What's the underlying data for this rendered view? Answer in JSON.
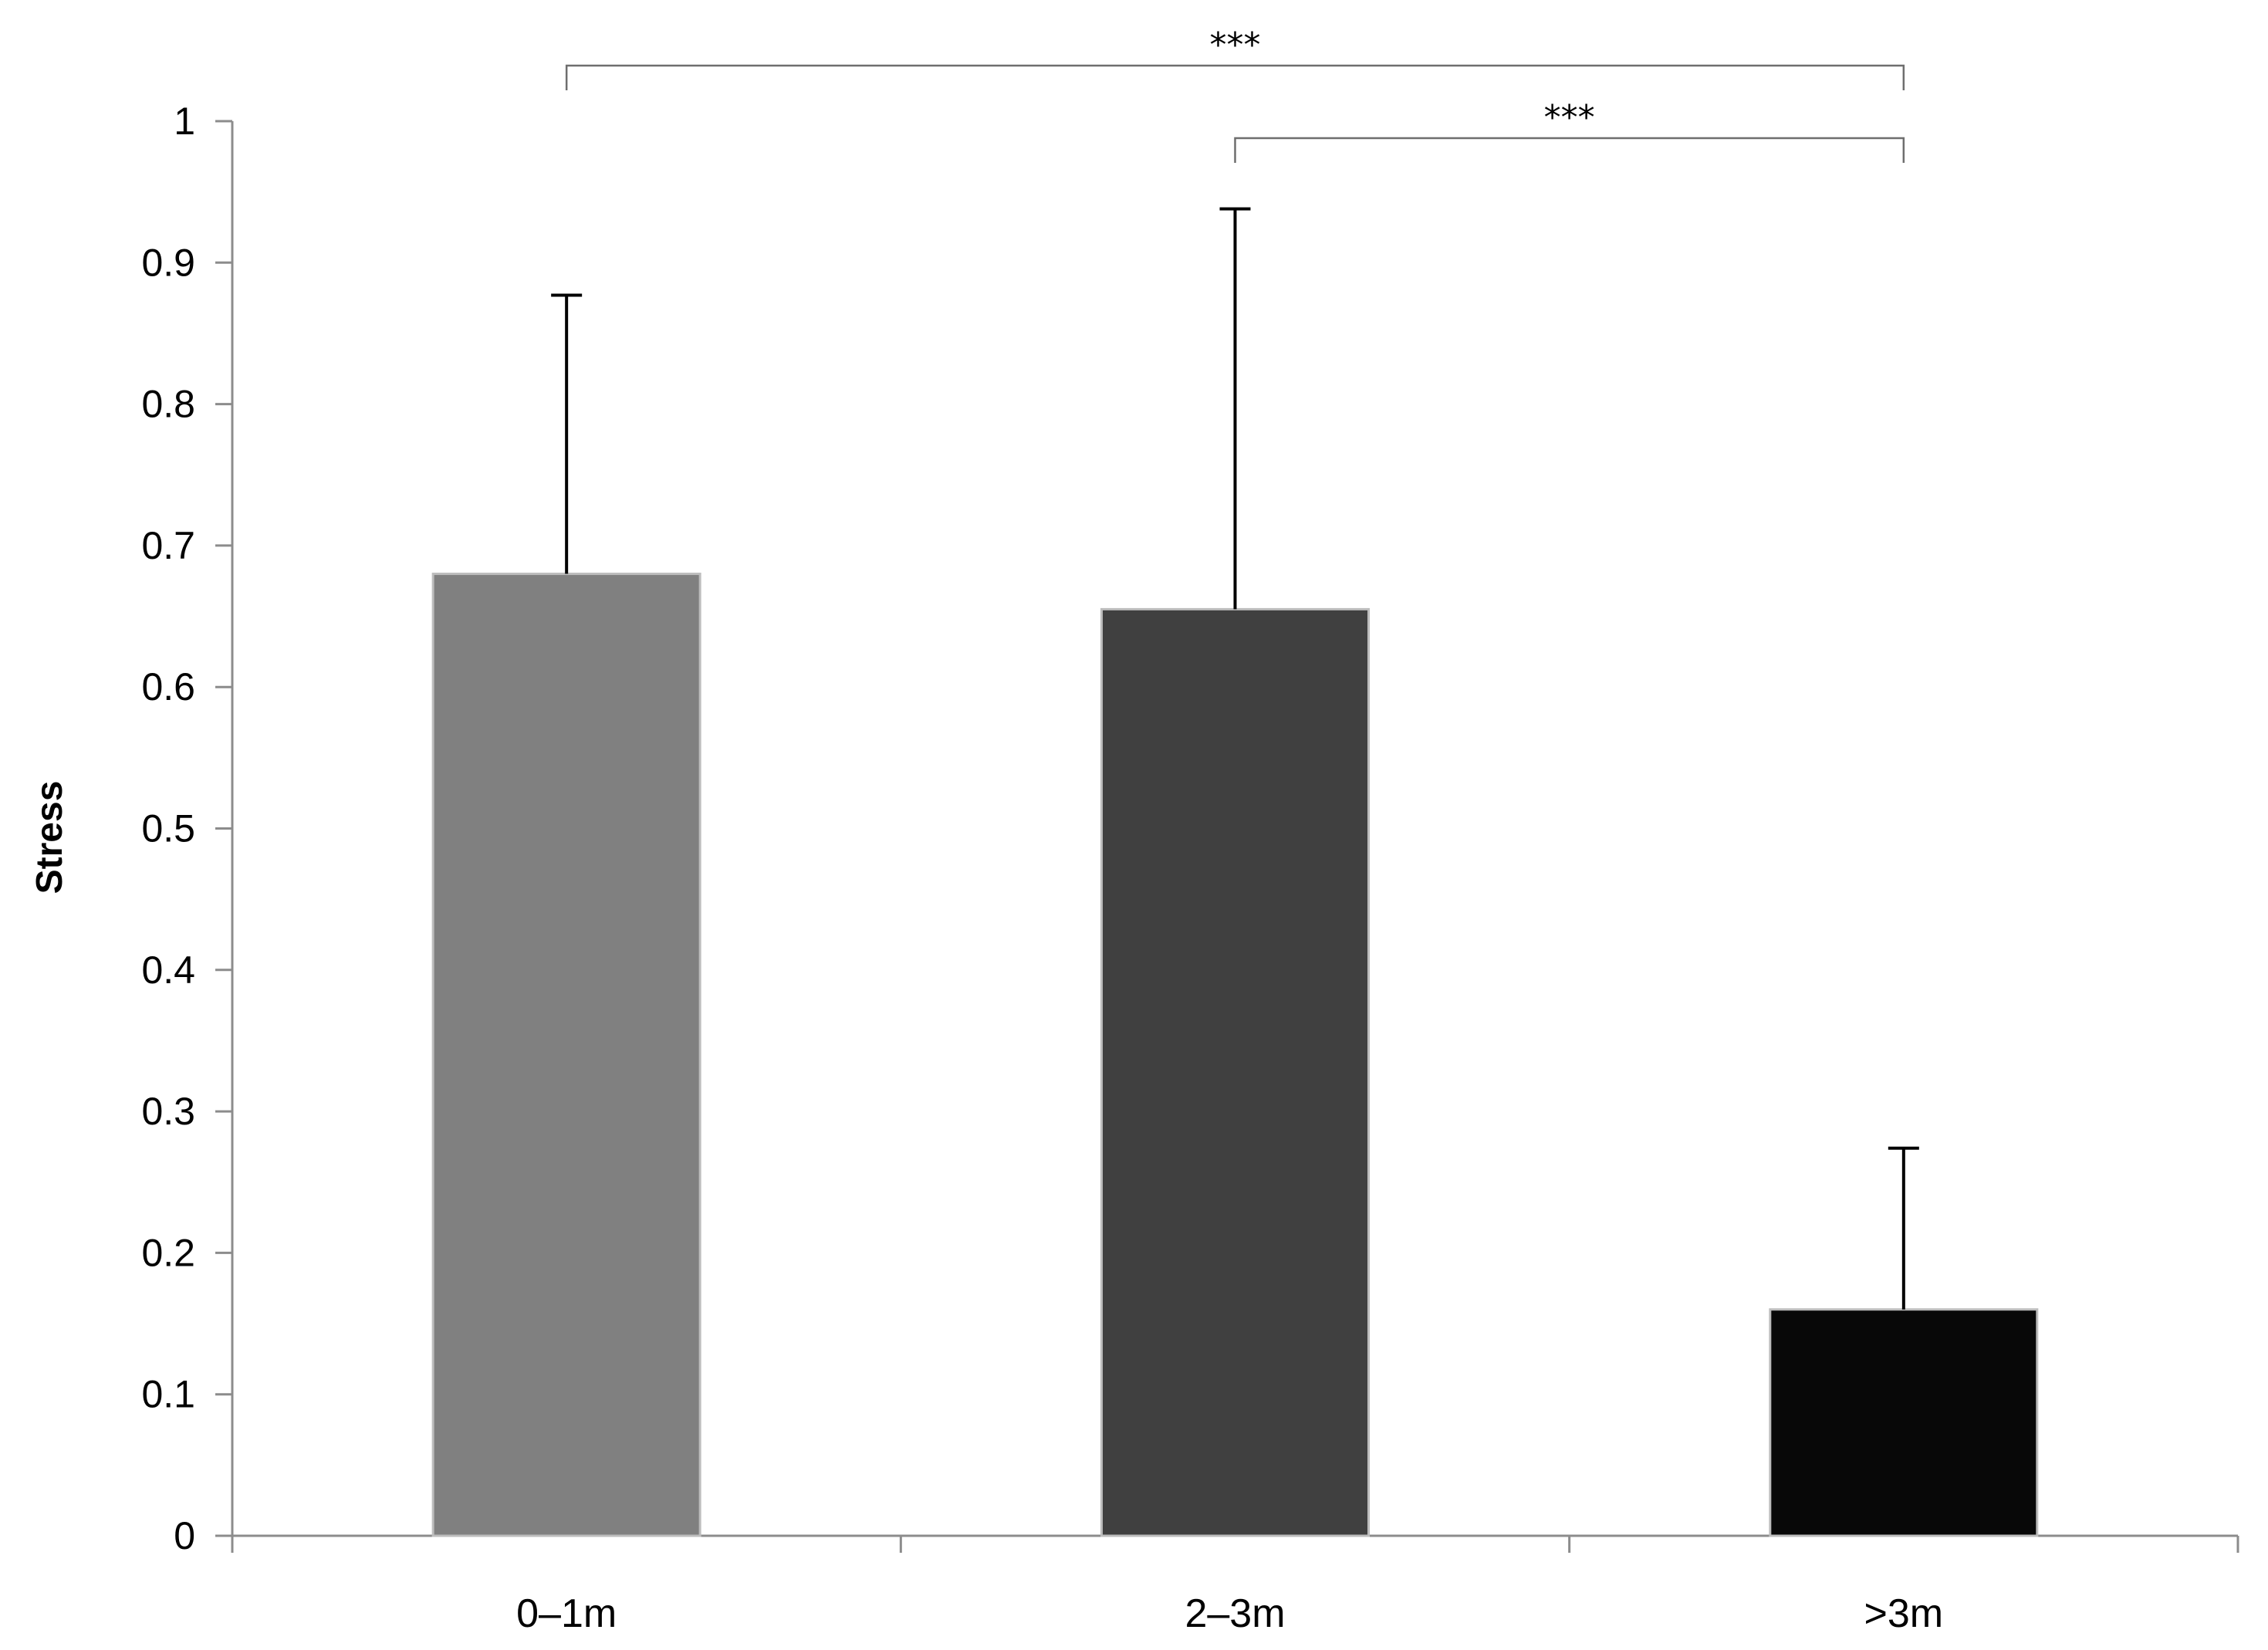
{
  "chart_data": {
    "type": "bar",
    "categories": [
      "0–1m",
      "2–3m",
      ">3m"
    ],
    "values": [
      0.68,
      0.655,
      0.16
    ],
    "error_upper": [
      0.877,
      0.938,
      0.274
    ],
    "colors": [
      "#808080",
      "#404040",
      "#080808"
    ],
    "ylabel": "Stress",
    "xlabel": "",
    "ylim": [
      0,
      1
    ],
    "yticks": [
      0,
      0.1,
      0.2,
      0.3,
      0.4,
      0.5,
      0.6,
      0.7,
      0.8,
      0.9,
      1
    ],
    "ytick_labels": [
      "0",
      "0.1",
      "0.2",
      "0.3",
      "0.4",
      "0.5",
      "0.6",
      "0.7",
      "0.8",
      "0.9",
      "1"
    ],
    "grid": false,
    "significance": [
      {
        "from": "0–1m",
        "to": ">3m",
        "label": "***"
      },
      {
        "from": "2–3m",
        "to": ">3m",
        "label": "***"
      }
    ]
  }
}
